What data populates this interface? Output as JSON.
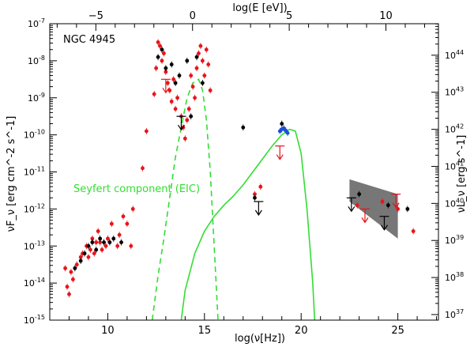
{
  "chart_data": {
    "type": "scatter",
    "title": "NGC 4945",
    "xlabel": "log(ν[Hz])",
    "ylabel_left": "νF_ν [erg cm^-2 s^-1]",
    "ylabel_right": "νL_ν [erg s^-1]",
    "xlabel_top": "log(E [eV])",
    "xlim": [
      7,
      27.1
    ],
    "ylim_log10": [
      -15,
      -7
    ],
    "x_ticks": [
      "10",
      "15",
      "20",
      "25"
    ],
    "x_top_ticks": [
      "−5",
      "0",
      "5",
      "10"
    ],
    "y_left_ticks": [
      "10^-15",
      "10^-14",
      "10^-13",
      "10^-12",
      "10^-11",
      "10^-10",
      "10^-9",
      "10^-8",
      "10^-7"
    ],
    "y_right_ticks": [
      "10^37",
      "10^38",
      "10^39",
      "10^40",
      "10^41",
      "10^42",
      "10^43",
      "10^44"
    ],
    "annotation": "Seyfert component (EIC)",
    "colors": {
      "red_points": "#e8141b",
      "black_points": "#000000",
      "green_model": "#33dd33",
      "blue_points": "#1f4fd8",
      "bowtie": "#777777"
    },
    "series": [
      {
        "name": "red data points",
        "color": "#e8141b",
        "points": [
          [
            7.8,
            -13.6
          ],
          [
            7.9,
            -14.1
          ],
          [
            8.0,
            -14.3
          ],
          [
            8.1,
            -13.7
          ],
          [
            8.2,
            -13.9
          ],
          [
            8.4,
            -13.5
          ],
          [
            8.6,
            -13.3
          ],
          [
            8.7,
            -13.2
          ],
          [
            8.9,
            -13.0
          ],
          [
            9.0,
            -13.3
          ],
          [
            9.1,
            -13.1
          ],
          [
            9.2,
            -12.8
          ],
          [
            9.3,
            -13.2
          ],
          [
            9.4,
            -12.9
          ],
          [
            9.5,
            -12.6
          ],
          [
            9.6,
            -12.9
          ],
          [
            9.7,
            -13.1
          ],
          [
            9.9,
            -13.0
          ],
          [
            10.0,
            -12.8
          ],
          [
            10.2,
            -12.4
          ],
          [
            10.5,
            -13.0
          ],
          [
            10.6,
            -12.7
          ],
          [
            10.8,
            -12.2
          ],
          [
            11.0,
            -12.4
          ],
          [
            11.2,
            -13.0
          ],
          [
            11.3,
            -12.0
          ],
          [
            11.8,
            -10.9
          ],
          [
            12.0,
            -9.9
          ],
          [
            12.4,
            -8.9
          ],
          [
            12.5,
            -8.2
          ],
          [
            12.6,
            -7.5
          ],
          [
            12.7,
            -7.6
          ],
          [
            12.8,
            -8.0
          ],
          [
            12.9,
            -7.8
          ],
          [
            13.0,
            -8.3
          ],
          [
            13.1,
            -8.6
          ],
          [
            13.2,
            -8.8
          ],
          [
            13.3,
            -9.1
          ],
          [
            13.4,
            -8.5
          ],
          [
            13.5,
            -9.3
          ],
          [
            13.6,
            -9.0
          ],
          [
            13.8,
            -9.5
          ],
          [
            13.9,
            -9.8
          ],
          [
            14.0,
            -10.1
          ],
          [
            14.1,
            -9.6
          ],
          [
            14.2,
            -9.3
          ],
          [
            14.3,
            -8.4
          ],
          [
            14.4,
            -8.7
          ],
          [
            14.5,
            -9.0
          ],
          [
            14.6,
            -8.2
          ],
          [
            14.7,
            -7.8
          ],
          [
            14.8,
            -7.6
          ],
          [
            14.9,
            -8.0
          ],
          [
            15.0,
            -8.4
          ],
          [
            15.1,
            -7.7
          ],
          [
            15.2,
            -8.1
          ],
          [
            15.3,
            -8.8
          ],
          [
            17.6,
            -11.6
          ],
          [
            17.9,
            -11.4
          ],
          [
            22.9,
            -11.9
          ],
          [
            24.2,
            -11.8
          ],
          [
            25.0,
            -12.0
          ],
          [
            25.8,
            -12.6
          ]
        ]
      },
      {
        "name": "black data points",
        "color": "#000000",
        "points": [
          [
            8.3,
            -13.6
          ],
          [
            8.6,
            -13.4
          ],
          [
            8.8,
            -13.2
          ],
          [
            9.0,
            -13.0
          ],
          [
            9.2,
            -12.9
          ],
          [
            9.4,
            -13.1
          ],
          [
            9.6,
            -12.8
          ],
          [
            9.8,
            -12.9
          ],
          [
            10.1,
            -12.9
          ],
          [
            10.3,
            -12.8
          ],
          [
            10.7,
            -12.9
          ],
          [
            12.6,
            -7.9
          ],
          [
            12.8,
            -7.7
          ],
          [
            13.0,
            -8.2
          ],
          [
            13.3,
            -8.1
          ],
          [
            13.5,
            -8.6
          ],
          [
            13.7,
            -8.4
          ],
          [
            14.1,
            -8.0
          ],
          [
            14.3,
            -9.5
          ],
          [
            14.6,
            -7.9
          ],
          [
            14.9,
            -8.6
          ],
          [
            17.0,
            -9.8
          ],
          [
            17.6,
            -11.7
          ],
          [
            19.0,
            -9.7
          ],
          [
            23.0,
            -11.6
          ],
          [
            24.5,
            -11.9
          ],
          [
            25.5,
            -12.0
          ]
        ]
      },
      {
        "name": "blue data points",
        "color": "#1f4fd8",
        "points": [
          [
            18.9,
            -9.9
          ],
          [
            19.0,
            -9.85
          ],
          [
            19.1,
            -9.82
          ],
          [
            19.2,
            -9.88
          ],
          [
            19.3,
            -9.95
          ]
        ]
      }
    ],
    "upper_limits": [
      {
        "color": "#e8141b",
        "x": 13.0,
        "y": -8.5
      },
      {
        "color": "#000000",
        "x": 13.8,
        "y": -9.5
      },
      {
        "color": "#e8141b",
        "x": 18.9,
        "y": -10.3
      },
      {
        "color": "#000000",
        "x": 17.8,
        "y": -11.8
      },
      {
        "color": "#000000",
        "x": 22.6,
        "y": -11.7
      },
      {
        "color": "#e8141b",
        "x": 23.3,
        "y": -12.0
      },
      {
        "color": "#000000",
        "x": 24.3,
        "y": -12.2
      },
      {
        "color": "#e8141b",
        "x": 24.9,
        "y": -11.6
      }
    ],
    "model_curves": [
      {
        "name": "Seyfert component (EIC)",
        "style": "solid",
        "color": "#33dd33",
        "points": [
          [
            13.8,
            -15.0
          ],
          [
            14.0,
            -14.2
          ],
          [
            14.5,
            -13.2
          ],
          [
            15.0,
            -12.6
          ],
          [
            15.5,
            -12.2
          ],
          [
            16.0,
            -11.9
          ],
          [
            16.5,
            -11.65
          ],
          [
            17.0,
            -11.35
          ],
          [
            17.5,
            -11.0
          ],
          [
            18.0,
            -10.65
          ],
          [
            18.5,
            -10.3
          ],
          [
            19.0,
            -10.0
          ],
          [
            19.4,
            -9.85
          ],
          [
            19.7,
            -9.9
          ],
          [
            20.0,
            -10.5
          ],
          [
            20.3,
            -12.0
          ],
          [
            20.6,
            -14.0
          ],
          [
            20.7,
            -15.0
          ]
        ]
      },
      {
        "name": "dashed component",
        "style": "dashed",
        "color": "#33dd33",
        "points": [
          [
            12.3,
            -15.0
          ],
          [
            12.6,
            -13.8
          ],
          [
            12.9,
            -12.8
          ],
          [
            13.2,
            -11.7
          ],
          [
            13.5,
            -10.6
          ],
          [
            13.8,
            -9.8
          ],
          [
            14.1,
            -9.0
          ],
          [
            14.4,
            -8.6
          ],
          [
            14.7,
            -8.5
          ],
          [
            14.9,
            -8.8
          ],
          [
            15.1,
            -9.6
          ],
          [
            15.3,
            -11.0
          ],
          [
            15.5,
            -13.0
          ],
          [
            15.7,
            -15.0
          ]
        ]
      }
    ],
    "bowtie": {
      "color": "#777777",
      "upper": [
        [
          22.5,
          -11.2
        ],
        [
          25.0,
          -11.6
        ]
      ],
      "lower": [
        [
          22.5,
          -11.8
        ],
        [
          25.0,
          -12.8
        ]
      ]
    }
  }
}
